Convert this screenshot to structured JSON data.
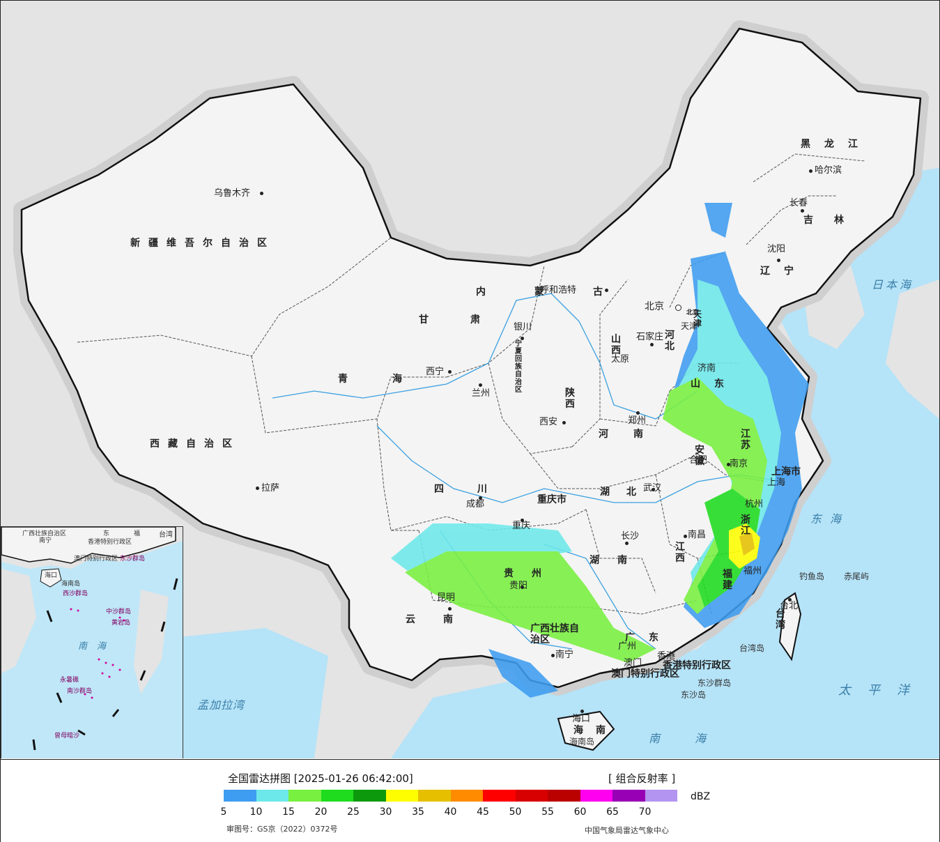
{
  "map": {
    "provinces": [
      "新疆维吾尔自治区",
      "西藏自治区",
      "青海",
      "甘肃",
      "内蒙古",
      "黑龙江",
      "吉林",
      "辽宁",
      "河北",
      "山西",
      "陕西",
      "四川",
      "云南",
      "贵州",
      "湖南",
      "湖北",
      "河南",
      "山东",
      "江苏",
      "安徽",
      "浙江",
      "江西",
      "福建",
      "广东",
      "广西壮族自治区",
      "海南",
      "台湾",
      "宁夏回族自治区",
      "重庆市",
      "上海市",
      "北京",
      "天津",
      "香港特别行政区",
      "澳门特别行政区"
    ],
    "cities": [
      "乌鲁木齐",
      "拉萨",
      "西宁",
      "兰州",
      "银川",
      "呼和浩特",
      "北京",
      "天津",
      "石家庄",
      "太原",
      "西安",
      "郑州",
      "济南",
      "南京",
      "合肥",
      "上海",
      "杭州",
      "武汉",
      "长沙",
      "南昌",
      "福州",
      "台北",
      "广州",
      "香港",
      "澳门",
      "南宁",
      "贵阳",
      "昆明",
      "成都",
      "重庆",
      "海口",
      "沈阳",
      "长春",
      "哈尔滨"
    ],
    "seas": [
      "日本海",
      "东海",
      "太平洋",
      "南海",
      "孟加拉湾",
      "南海"
    ],
    "islands": [
      "钓鱼岛",
      "赤尾屿",
      "台湾岛",
      "东沙群岛",
      "东沙岛",
      "海南岛"
    ],
    "inset_labels": [
      "广西壮族自治区",
      "南宁",
      "海口",
      "香港特别行政区",
      "澳门特别行政区",
      "东沙群岛",
      "西沙群岛",
      "中沙群岛",
      "黄岩岛",
      "南沙群岛",
      "永暑礁",
      "曾母暗沙",
      "南海",
      "台湾",
      "东",
      "福",
      "海南岛"
    ],
    "colors": {
      "ocean": "#b5e3f8",
      "land": "#f4f4f4",
      "foreign": "#e4e4e4",
      "border": "#111111",
      "river": "#3aa0e0"
    }
  },
  "legend": {
    "title": "全国雷达拼图 [2025-01-26 06:42:00]",
    "product": "[ 组合反射率 ]",
    "unit": "dBZ",
    "colors": [
      "#3e9df0",
      "#6de8ea",
      "#78f040",
      "#1fdc1f",
      "#0c9a0c",
      "#fefe00",
      "#e6c000",
      "#ff8c00",
      "#fe0000",
      "#d80000",
      "#bb0000",
      "#ff00f0",
      "#9700b4",
      "#b394f0"
    ],
    "ticks": [
      "5",
      "10",
      "15",
      "20",
      "25",
      "30",
      "35",
      "40",
      "45",
      "50",
      "55",
      "60",
      "65",
      "70"
    ],
    "approval": "审图号：GS京（2022）0372号",
    "source": "中国气象局雷达气象中心"
  }
}
